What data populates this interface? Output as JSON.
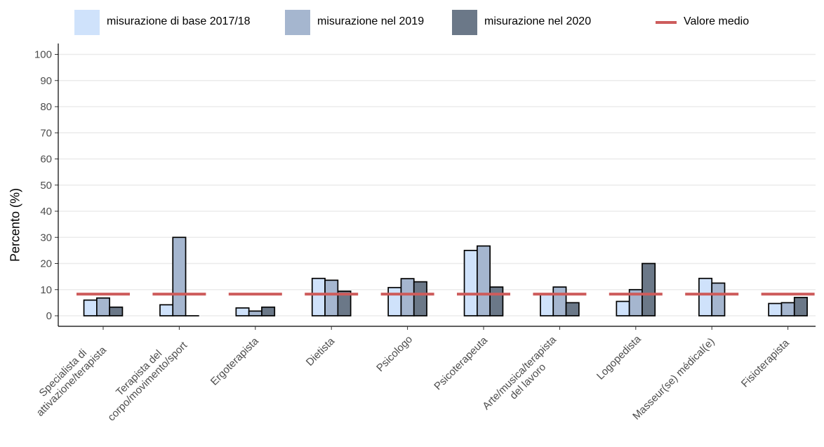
{
  "chart_data": {
    "type": "bar",
    "title": "",
    "xlabel": "",
    "ylabel": "Percento (%)",
    "ylim": [
      0,
      100
    ],
    "yticks": [
      0,
      10,
      20,
      30,
      40,
      50,
      60,
      70,
      80,
      90,
      100
    ],
    "grid": true,
    "legend_position": "top",
    "categories": [
      "Specialista di\nattivazione/terapista",
      "Terapista del\ncorpo/movimento/sport",
      "Ergoterapista",
      "Dietista",
      "Psicologo",
      "Psicoterapeuta",
      "Arte/musica/terapista\ndel lavoro",
      "Logopedista",
      "Masseur(se) médical(e)",
      "Fisioterapista"
    ],
    "series": [
      {
        "name": "misurazione di base 2017/18",
        "color": "#cfe2fb",
        "values": [
          6,
          4.2,
          3,
          14.3,
          10.8,
          25,
          8.3,
          5.5,
          14.3,
          4.7
        ]
      },
      {
        "name": "misurazione nel 2019",
        "color": "#a5b6cf",
        "values": [
          6.8,
          30,
          1.8,
          13.6,
          14.2,
          26.7,
          11,
          10,
          12.5,
          5
        ]
      },
      {
        "name": "misurazione nel 2020",
        "color": "#6b7888",
        "values": [
          3.3,
          0,
          3.3,
          9.4,
          13,
          11,
          5,
          20,
          null,
          7
        ]
      }
    ],
    "reference_line": {
      "name": "Valore medio",
      "color": "#cd5c5c",
      "value": 8.3
    }
  }
}
